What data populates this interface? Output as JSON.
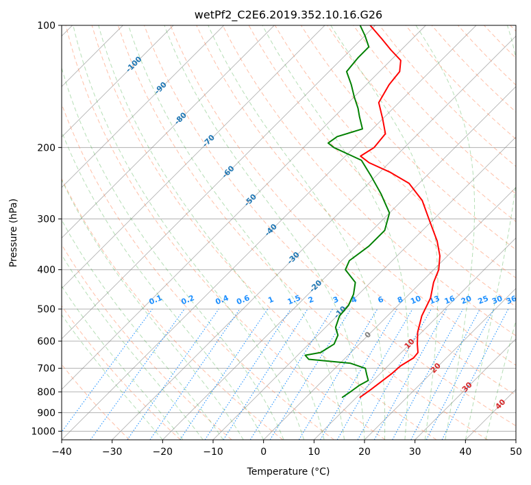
{
  "chart_data": {
    "type": "line",
    "title": "wetPf2_C2E6.2019.352.10.16.G26",
    "xlabel": "Temperature (°C)",
    "ylabel": "Pressure (hPa)",
    "xlim": [
      -40,
      50
    ],
    "ylim": [
      1050,
      100
    ],
    "y_scale": "log",
    "skew": true,
    "grid": true,
    "x_ticks": [
      -40,
      -30,
      -20,
      -10,
      0,
      10,
      20,
      30,
      40,
      50
    ],
    "y_ticks": [
      100,
      200,
      300,
      400,
      500,
      600,
      700,
      800,
      900,
      1000
    ],
    "colors": {
      "temperature": "#ff0000",
      "dewpoint": "#008000",
      "isotherm": "#808080",
      "dry_adiabat": "#ff7f50",
      "moist_adiabat": "#2ca02c",
      "mixing_ratio": "#1e90ff",
      "isotherm_label": "#1f77b4",
      "moist_label": "#d62728"
    },
    "series": [
      {
        "values": [
          {
            "p": 825,
            "t": 10.7
          },
          {
            "p": 790,
            "t": 11.3
          },
          {
            "p": 755,
            "t": 11.8
          },
          {
            "p": 720,
            "t": 12.3
          },
          {
            "p": 690,
            "t": 12.5
          },
          {
            "p": 660,
            "t": 13.5
          },
          {
            "p": 640,
            "t": 13.3
          },
          {
            "p": 610,
            "t": 11.5
          },
          {
            "p": 570,
            "t": 9.2
          },
          {
            "p": 520,
            "t": 6.8
          },
          {
            "p": 470,
            "t": 5.0
          },
          {
            "p": 430,
            "t": 2.5
          },
          {
            "p": 400,
            "t": 1.0
          },
          {
            "p": 370,
            "t": -1.5
          },
          {
            "p": 340,
            "t": -5.0
          },
          {
            "p": 300,
            "t": -11.0
          },
          {
            "p": 270,
            "t": -16.0
          },
          {
            "p": 245,
            "t": -22.0
          },
          {
            "p": 230,
            "t": -28.0
          },
          {
            "p": 218,
            "t": -34.0
          },
          {
            "p": 210,
            "t": -37.0
          },
          {
            "p": 200,
            "t": -36.0
          },
          {
            "p": 185,
            "t": -36.5
          },
          {
            "p": 170,
            "t": -40.0
          },
          {
            "p": 155,
            "t": -44.0
          },
          {
            "p": 140,
            "t": -45.5
          },
          {
            "p": 130,
            "t": -46.0
          },
          {
            "p": 122,
            "t": -48.0
          },
          {
            "p": 115,
            "t": -52.0
          },
          {
            "p": 108,
            "t": -56.0
          },
          {
            "p": 100,
            "t": -61.0
          }
        ]
      },
      {
        "values": [
          {
            "p": 825,
            "t": 7.2
          },
          {
            "p": 800,
            "t": 7.7
          },
          {
            "p": 770,
            "t": 8.2
          },
          {
            "p": 750,
            "t": 9.0
          },
          {
            "p": 725,
            "t": 7.5
          },
          {
            "p": 700,
            "t": 6.0
          },
          {
            "p": 680,
            "t": 2.0
          },
          {
            "p": 665,
            "t": -7.0
          },
          {
            "p": 650,
            "t": -8.5
          },
          {
            "p": 640,
            "t": -6.0
          },
          {
            "p": 610,
            "t": -5.0
          },
          {
            "p": 580,
            "t": -6.0
          },
          {
            "p": 555,
            "t": -8.0
          },
          {
            "p": 520,
            "t": -9.5
          },
          {
            "p": 490,
            "t": -9.8
          },
          {
            "p": 460,
            "t": -11.0
          },
          {
            "p": 430,
            "t": -13.0
          },
          {
            "p": 400,
            "t": -17.5
          },
          {
            "p": 380,
            "t": -18.5
          },
          {
            "p": 350,
            "t": -17.5
          },
          {
            "p": 320,
            "t": -17.5
          },
          {
            "p": 290,
            "t": -20.0
          },
          {
            "p": 260,
            "t": -25.5
          },
          {
            "p": 235,
            "t": -31.0
          },
          {
            "p": 215,
            "t": -36.0
          },
          {
            "p": 200,
            "t": -44.0
          },
          {
            "p": 195,
            "t": -46.0
          },
          {
            "p": 188,
            "t": -45.5
          },
          {
            "p": 180,
            "t": -42.0
          },
          {
            "p": 168,
            "t": -45.0
          },
          {
            "p": 160,
            "t": -47.0
          },
          {
            "p": 150,
            "t": -50.0
          },
          {
            "p": 140,
            "t": -53.0
          },
          {
            "p": 130,
            "t": -56.5
          },
          {
            "p": 120,
            "t": -57.0
          },
          {
            "p": 113,
            "t": -57.0
          },
          {
            "p": 106,
            "t": -60.0
          },
          {
            "p": 100,
            "t": -63.0
          }
        ]
      }
    ],
    "isotherm_labels": [
      {
        "text": "-100",
        "t": -100,
        "p": 125
      },
      {
        "text": "-90",
        "t": -90,
        "p": 143
      },
      {
        "text": "-80",
        "t": -80,
        "p": 170
      },
      {
        "text": "-70",
        "t": -70,
        "p": 193
      },
      {
        "text": "-60",
        "t": -60,
        "p": 230
      },
      {
        "text": "-50",
        "t": -50,
        "p": 270
      },
      {
        "text": "-40",
        "t": -40,
        "p": 320
      },
      {
        "text": "-30",
        "t": -30,
        "p": 375
      },
      {
        "text": "-20",
        "t": -20,
        "p": 440
      },
      {
        "text": "-10",
        "t": -10,
        "p": 510
      },
      {
        "text": "0",
        "t": 0,
        "p": 580
      }
    ],
    "mixing_ratio_values": [
      0.1,
      0.2,
      0.4,
      0.6,
      1,
      1.5,
      2,
      3,
      4,
      6,
      8,
      10,
      13,
      16,
      20,
      25,
      30,
      36
    ],
    "mixing_ratio_labels": [
      "0.1",
      "0.2",
      "0.4",
      "0.6",
      "1",
      "1.5",
      "2",
      "3",
      "4",
      "6",
      "8",
      "10",
      "13",
      "16",
      "20",
      "25",
      "30",
      "36"
    ],
    "moist_labels": [
      {
        "text": "10",
        "t": 10,
        "p": 610
      },
      {
        "text": "20",
        "t": 20,
        "p": 700
      },
      {
        "text": "30",
        "t": 30,
        "p": 780
      },
      {
        "text": "40",
        "t": 40,
        "p": 860
      }
    ]
  }
}
